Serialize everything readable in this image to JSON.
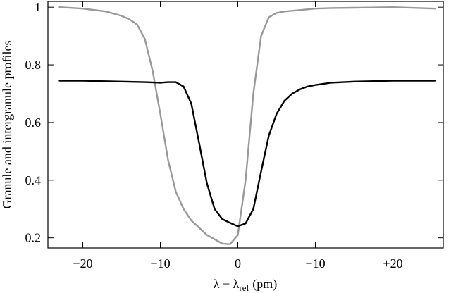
{
  "chart_data": {
    "type": "line",
    "title": "",
    "xlabel_main": "λ − λ",
    "xlabel_sub": "ref",
    "xlabel_unit": " (pm)",
    "ylabel": "Granule and intergranule profiles",
    "xlim": [
      -24.5,
      26.5
    ],
    "ylim": [
      0.165,
      1.02
    ],
    "grid": false,
    "legend": "none",
    "xticks": [
      -20,
      -10,
      0,
      10,
      20
    ],
    "xtick_labels": [
      "−20",
      "−10",
      "0",
      "+10",
      "+20"
    ],
    "yticks": [
      0.2,
      0.4,
      0.6,
      0.8,
      1.0
    ],
    "ytick_labels": [
      "0.2",
      "0.4",
      "0.6",
      "0.8",
      "1"
    ],
    "series": [
      {
        "color": "#999999",
        "x": [
          -23,
          -20,
          -17,
          -15,
          -14,
          -13,
          -12,
          -11,
          -10,
          -9,
          -8,
          -7,
          -6,
          -5,
          -4,
          -3,
          -2,
          -1,
          0,
          1,
          2,
          3,
          4,
          5,
          6,
          8,
          10,
          12,
          15,
          20,
          25.5
        ],
        "y": [
          1.0,
          0.995,
          0.985,
          0.97,
          0.958,
          0.94,
          0.89,
          0.78,
          0.63,
          0.47,
          0.36,
          0.3,
          0.26,
          0.235,
          0.21,
          0.195,
          0.18,
          0.178,
          0.21,
          0.4,
          0.7,
          0.9,
          0.965,
          0.98,
          0.985,
          0.99,
          0.995,
          0.997,
          0.998,
          1.0,
          0.995
        ]
      },
      {
        "color": "#000000",
        "x": [
          -23,
          -20,
          -15,
          -12,
          -10,
          -9,
          -8,
          -7,
          -6,
          -5,
          -4,
          -3,
          -2,
          -1,
          0,
          1,
          2,
          3,
          4,
          5,
          6,
          7,
          8,
          9,
          10,
          12,
          15,
          20,
          25.5
        ],
        "y": [
          0.745,
          0.745,
          0.742,
          0.74,
          0.738,
          0.74,
          0.74,
          0.725,
          0.665,
          0.53,
          0.39,
          0.3,
          0.265,
          0.252,
          0.24,
          0.25,
          0.3,
          0.43,
          0.555,
          0.63,
          0.675,
          0.7,
          0.715,
          0.725,
          0.73,
          0.738,
          0.742,
          0.745,
          0.745
        ]
      }
    ]
  }
}
